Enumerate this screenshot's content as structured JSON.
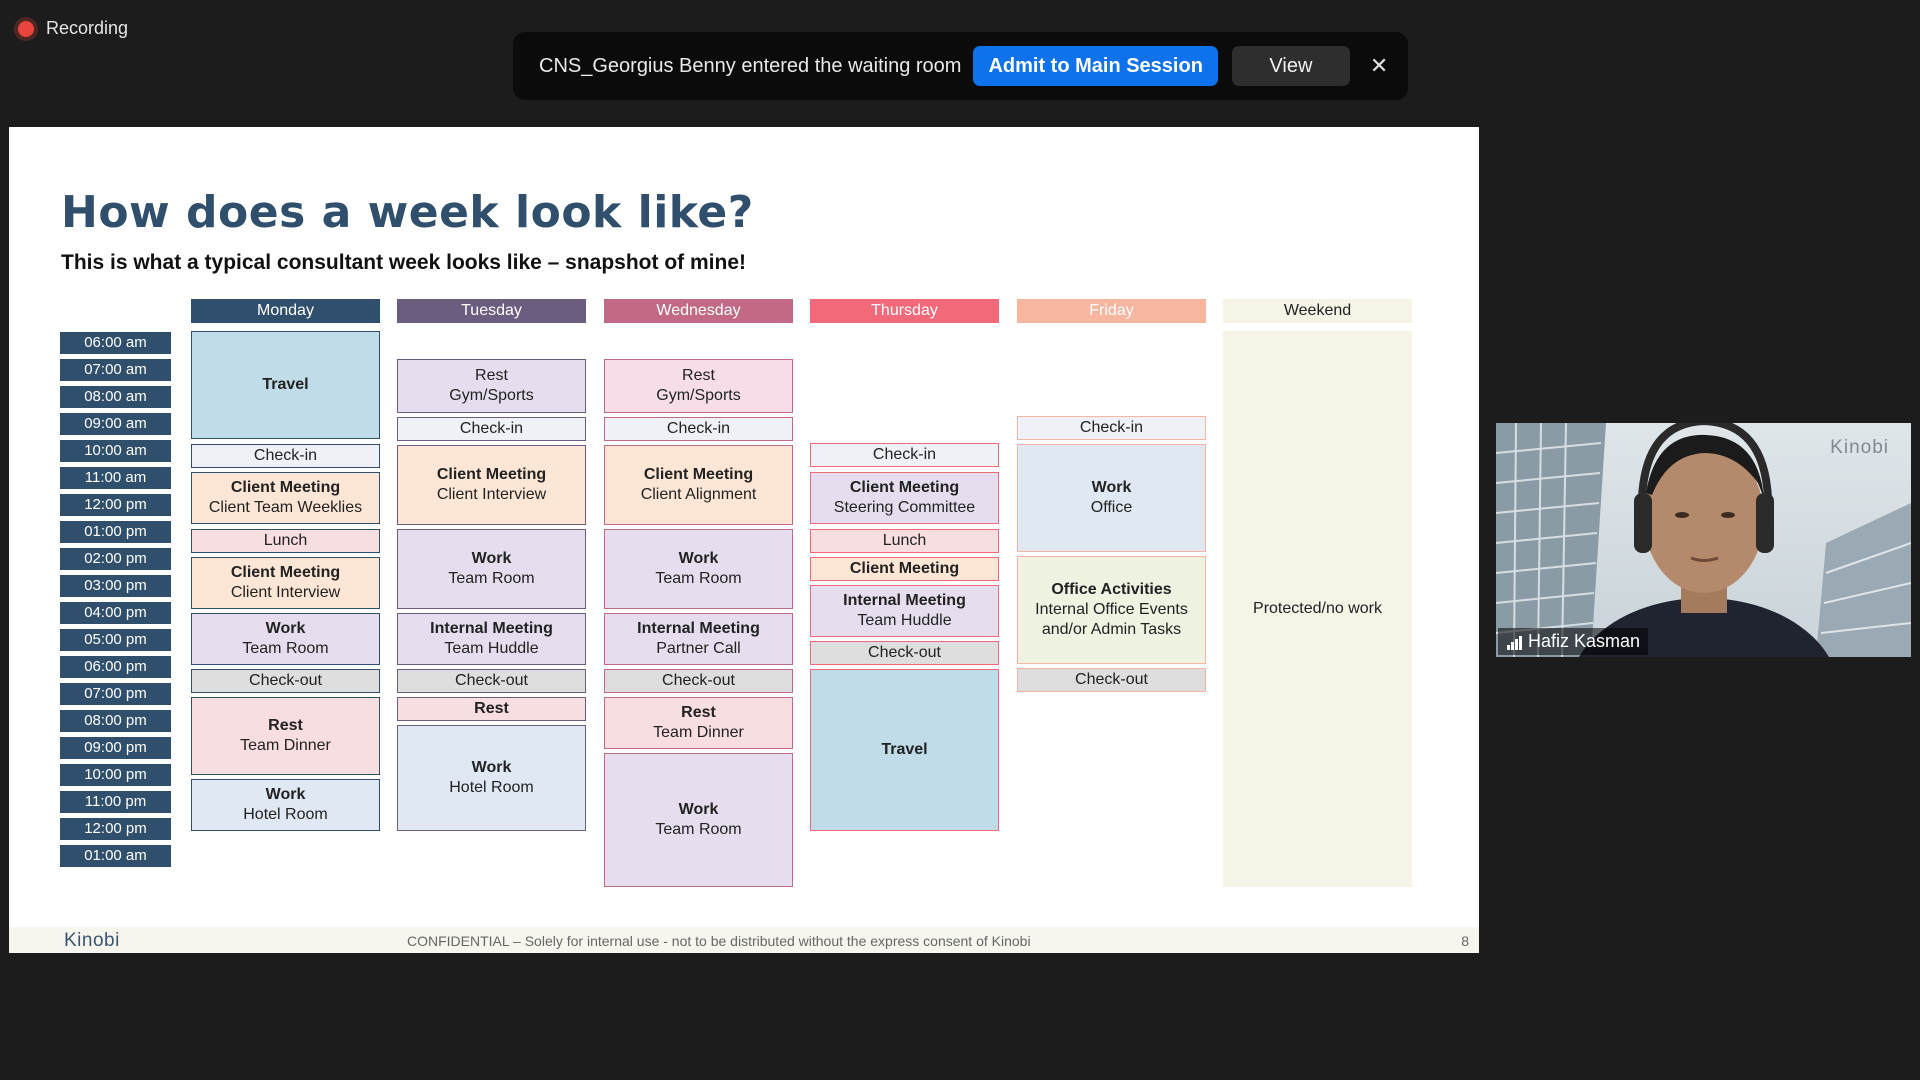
{
  "recording": {
    "label": "Recording"
  },
  "notification": {
    "message": "CNS_Georgius Benny entered the waiting room",
    "admit_label": "Admit to Main Session",
    "view_label": "View",
    "close_label": "✕"
  },
  "slide": {
    "title": "How does a week look like?",
    "subtitle": "This is what a typical consultant week looks like – snapshot of mine!",
    "footer": {
      "brand": "Kinobi",
      "confidential": "CONFIDENTIAL – Solely for internal use - not to be distributed without the express consent of Kinobi",
      "page": "8"
    },
    "times": [
      "06:00 am",
      "07:00 am",
      "08:00 am",
      "09:00 am",
      "10:00 am",
      "11:00 am",
      "12:00 pm",
      "01:00 pm",
      "02:00 pm",
      "03:00 pm",
      "04:00 pm",
      "05:00 pm",
      "06:00 pm",
      "07:00 pm",
      "08:00 pm",
      "09:00 pm",
      "10:00 pm",
      "11:00 pm",
      "12:00 pm",
      "01:00 am"
    ],
    "days": {
      "monday": {
        "label": "Monday",
        "color": "#2f4f6c"
      },
      "tuesday": {
        "label": "Tuesday",
        "color": "#6b5d80"
      },
      "wednesday": {
        "label": "Wednesday",
        "color": "#c26a85"
      },
      "thursday": {
        "label": "Thursday",
        "color": "#f26a7a"
      },
      "friday": {
        "label": "Friday",
        "color": "#f6b6a0"
      },
      "weekend": {
        "label": "Weekend",
        "color": "#f6f4e6"
      }
    },
    "blocks": {
      "mon": {
        "travel": "Travel",
        "checkin": "Check-in",
        "client_meeting": {
          "title": "Client Meeting",
          "sub": "Client Team Weeklies"
        },
        "lunch": "Lunch",
        "client_meeting2": {
          "title": "Client Meeting",
          "sub": "Client Interview"
        },
        "work": {
          "title": "Work",
          "sub": "Team Room"
        },
        "checkout": "Check-out",
        "rest": {
          "title": "Rest",
          "sub": "Team Dinner"
        },
        "work2": {
          "title": "Work",
          "sub": "Hotel Room"
        }
      },
      "tue": {
        "rest": {
          "title": "Rest",
          "sub": "Gym/Sports"
        },
        "checkin": "Check-in",
        "client_meeting": {
          "title": "Client Meeting",
          "sub": "Client Interview"
        },
        "work": {
          "title": "Work",
          "sub": "Team Room"
        },
        "internal": {
          "title": "Internal Meeting",
          "sub": "Team Huddle"
        },
        "checkout": "Check-out",
        "rest2": "Rest",
        "work2": {
          "title": "Work",
          "sub": "Hotel Room"
        }
      },
      "wed": {
        "rest": {
          "title": "Rest",
          "sub": "Gym/Sports"
        },
        "checkin": "Check-in",
        "client_meeting": {
          "title": "Client Meeting",
          "sub": "Client Alignment"
        },
        "work": {
          "title": "Work",
          "sub": "Team Room"
        },
        "internal": {
          "title": "Internal Meeting",
          "sub": "Partner Call"
        },
        "checkout": "Check-out",
        "rest2": {
          "title": "Rest",
          "sub": "Team Dinner"
        },
        "work2": {
          "title": "Work",
          "sub": "Team Room"
        }
      },
      "thu": {
        "checkin": "Check-in",
        "client_meeting": {
          "title": "Client Meeting",
          "sub": "Steering Committee"
        },
        "lunch": "Lunch",
        "client_meeting2": "Client Meeting",
        "internal": {
          "title": "Internal Meeting",
          "sub": "Team Huddle"
        },
        "checkout": "Check-out",
        "travel": "Travel"
      },
      "fri": {
        "checkin": "Check-in",
        "work": {
          "title": "Work",
          "sub": "Office"
        },
        "office": {
          "title": "Office Activities",
          "sub": "Internal Office Events and/or Admin Tasks"
        },
        "checkout": "Check-out"
      },
      "weekend": {
        "protected": "Protected/no work"
      }
    }
  },
  "video": {
    "speaker": "Hafiz Kasman",
    "logo": "Kinobi"
  }
}
